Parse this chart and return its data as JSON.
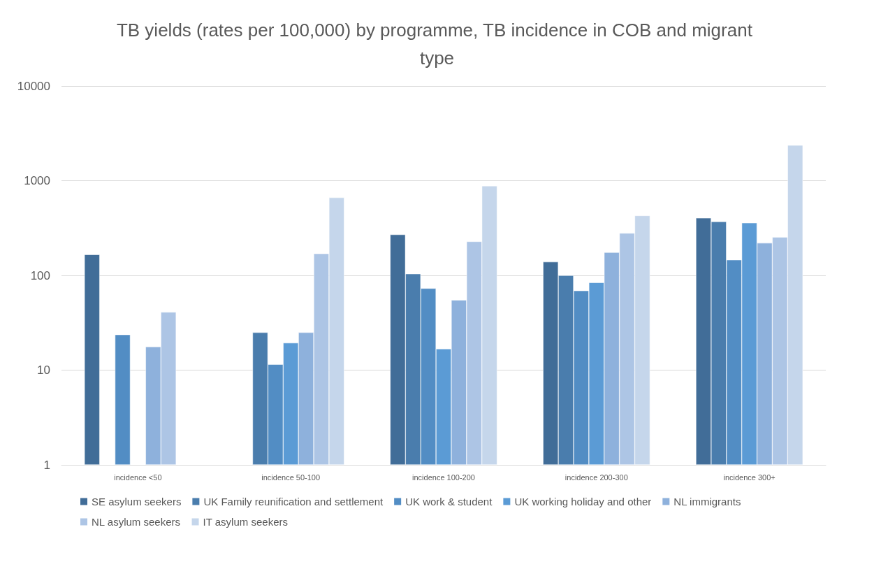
{
  "chart_data": {
    "type": "bar",
    "title": "TB yields (rates per 100,000) by programme, TB incidence in COB and migrant type",
    "categories": [
      "incidence <50",
      "incidence 50-100",
      "incidence 100-200",
      "incidence 200-300",
      "incidence 300+"
    ],
    "series": [
      {
        "name": "SE asylum seekers",
        "color": "#416d98",
        "values": [
          166,
          null,
          270,
          139,
          404
        ]
      },
      {
        "name": "UK Family reunification and settlement",
        "color": "#4a7dad",
        "values": [
          null,
          25,
          104,
          100,
          370
        ]
      },
      {
        "name": "UK work & student",
        "color": "#528dc4",
        "values": [
          23.7,
          11.5,
          73,
          69,
          146
        ]
      },
      {
        "name": "UK working holiday and other",
        "color": "#5b9bd5",
        "values": [
          null,
          19.4,
          16.8,
          84,
          359
        ]
      },
      {
        "name": "NL immigrants",
        "color": "#8eb1dc",
        "values": [
          17.7,
          25,
          55,
          175,
          220
        ]
      },
      {
        "name": "NL asylum seekers",
        "color": "#adc5e5",
        "values": [
          41,
          170,
          228,
          279,
          254
        ]
      },
      {
        "name": "IT asylum seekers",
        "color": "#c5d6eb",
        "values": [
          null,
          664,
          882,
          428,
          2368
        ]
      }
    ],
    "log": "y",
    "ylim": [
      1,
      10000
    ],
    "yticks": [
      1,
      10,
      100,
      1000,
      10000
    ],
    "grid": "y",
    "legend": "bottom"
  }
}
